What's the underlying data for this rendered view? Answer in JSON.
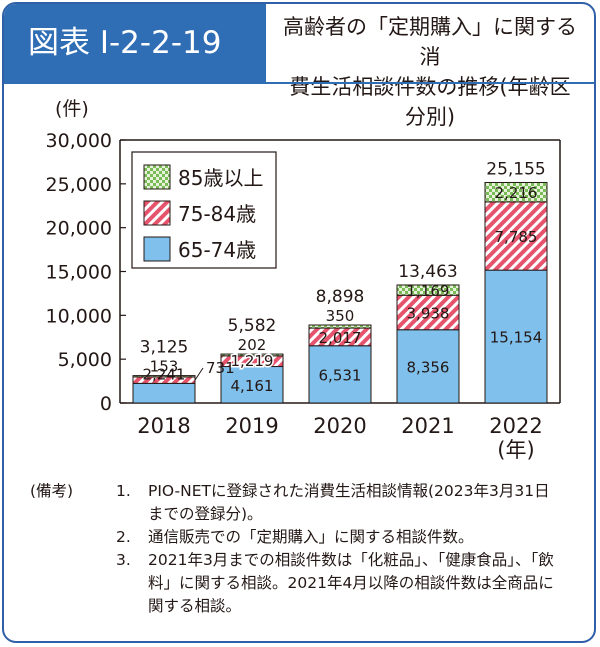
{
  "header": {
    "tag": "図表 I-2-2-19",
    "title_line1": "高齢者の「定期購入」に関する消",
    "title_line2": "費生活相談件数の推移(年齢区分別)"
  },
  "colors": {
    "frame": "#2f5fa6",
    "header_fill": "#2f6db5",
    "age_65_74": "#7fc0ec",
    "age_75_84": "#e5536c",
    "age_85_plus": "#8cc46a"
  },
  "chart_data": {
    "type": "bar",
    "stacked": true,
    "ylabel": "(件)",
    "xlabel": "(年)",
    "ylim": [
      0,
      30000
    ],
    "yticks": [
      0,
      5000,
      10000,
      15000,
      20000,
      25000,
      30000
    ],
    "ytick_labels": [
      "0",
      "5,000",
      "10,000",
      "15,000",
      "20,000",
      "25,000",
      "30,000"
    ],
    "categories": [
      "2018",
      "2019",
      "2020",
      "2021",
      "2022"
    ],
    "series": [
      {
        "name": "65-74歳",
        "values": [
          2241,
          4161,
          6531,
          8356,
          15154
        ],
        "labels": [
          "2,241",
          "4,161",
          "6,531",
          "8,356",
          "15,154"
        ]
      },
      {
        "name": "75-84歳",
        "values": [
          731,
          1219,
          2017,
          3938,
          7785
        ],
        "labels": [
          "731",
          "1,219",
          "2,017",
          "3,938",
          "7,785"
        ]
      },
      {
        "name": "85歳以上",
        "values": [
          153,
          202,
          350,
          1169,
          2216
        ],
        "labels": [
          "153",
          "202",
          "350",
          "1,169",
          "2,216"
        ]
      }
    ],
    "totals": [
      3125,
      5582,
      8898,
      13463,
      25155
    ],
    "total_labels": [
      "3,125",
      "5,582",
      "8,898",
      "13,463",
      "25,155"
    ],
    "legend": [
      "85歳以上",
      "75-84歳",
      "65-74歳"
    ],
    "legend_position": "top-left",
    "grid": false
  },
  "notes": {
    "heading": "(備考)",
    "items": [
      {
        "num": "1.",
        "text": "PIO-NETに登録された消費生活相談情報(2023年3月31日までの登録分)。"
      },
      {
        "num": "2.",
        "text": "通信販売での「定期購入」に関する相談件数。"
      },
      {
        "num": "3.",
        "text": "2021年3月までの相談件数は「化粧品」、「健康食品」、「飲料」に関する相談。2021年4月以降の相談件数は全商品に関する相談。"
      }
    ]
  }
}
